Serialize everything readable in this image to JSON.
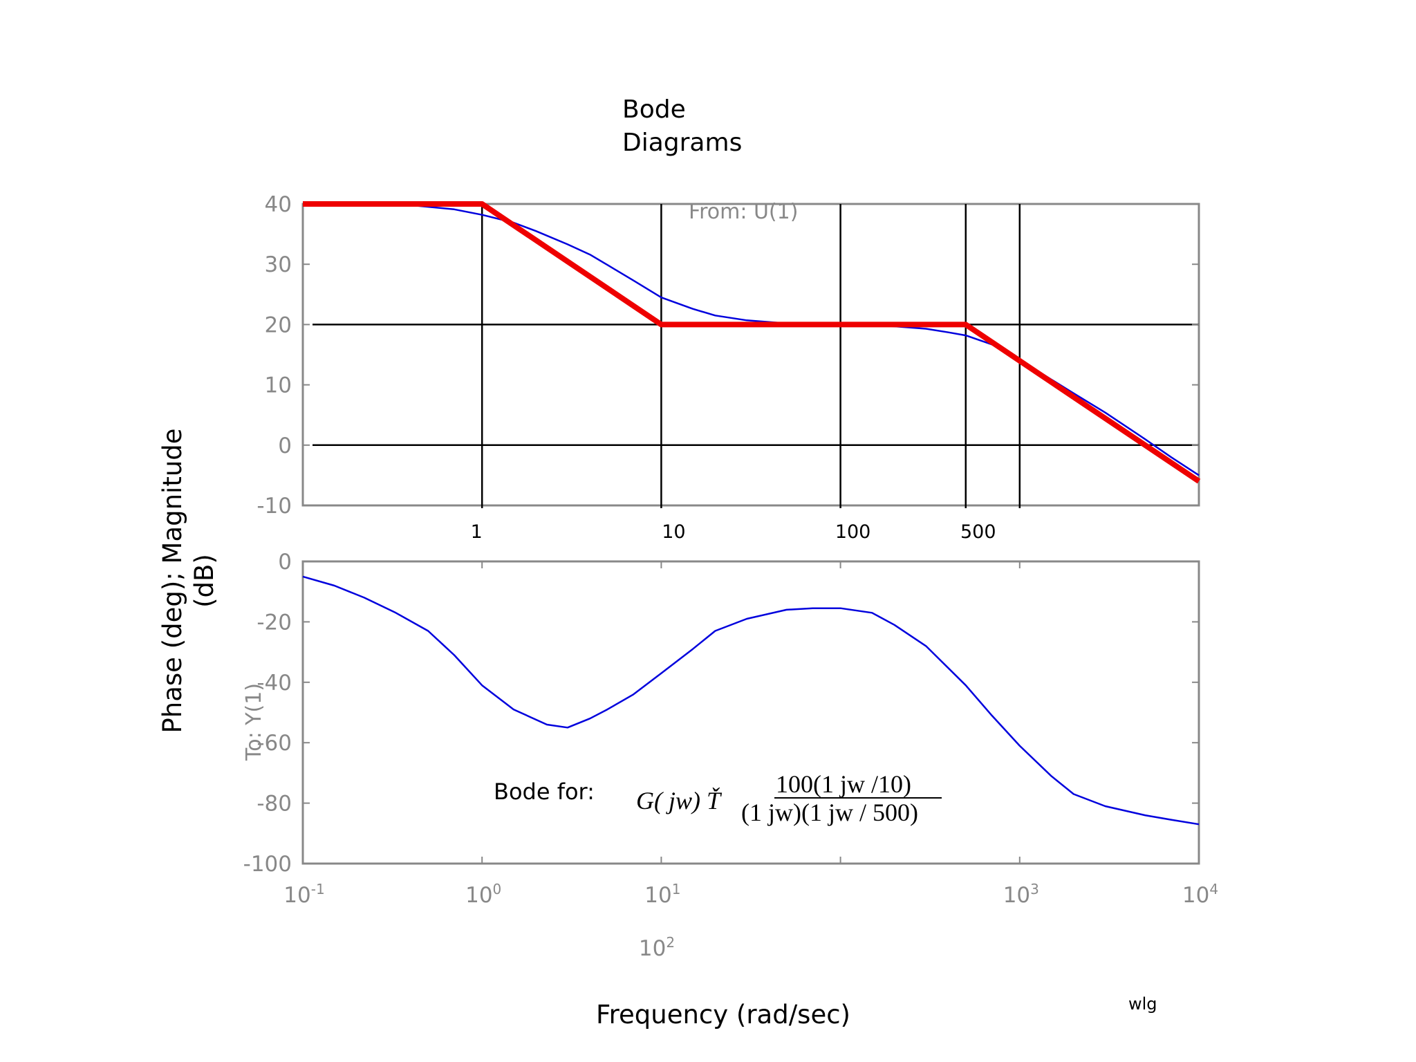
{
  "title_lines": [
    "Bode",
    "Diagrams"
  ],
  "from_label": "From: U(1)",
  "to_label": "To: Y(1)",
  "ylabel_lines": [
    "Phase (deg); Magnitude",
    "(dB)"
  ],
  "xlabel": "Frequency (rad/sec)",
  "author": "wlg",
  "annotation": {
    "prefix": "Bode for:",
    "lhs": "G( jw) Ť",
    "numerator": "100(1   jw /10)",
    "denominator": "(1   jw)(1   jw / 500)",
    "dots": [
      "̣",
      "̣"
    ]
  },
  "colors": {
    "bode": "#0000dd",
    "asymptote": "#ee0000",
    "frame": "#888888",
    "grid": "#000000"
  },
  "chart_data": [
    {
      "type": "line",
      "name": "magnitude",
      "xscale": "log",
      "xlim": [
        0.1,
        10000
      ],
      "ylim": [
        -10,
        40
      ],
      "ytick_labels": [
        "40",
        "30",
        "20",
        "10",
        "0",
        "-10"
      ],
      "ytick_values": [
        40,
        30,
        20,
        10,
        0,
        -10
      ],
      "marked_frequencies": [
        {
          "label": "1",
          "value": 1
        },
        {
          "label": "10",
          "value": 10
        },
        {
          "label": "100",
          "value": 100
        },
        {
          "label": "500",
          "value": 500
        }
      ],
      "vertical_lines": [
        1,
        10,
        100,
        500,
        1000
      ],
      "horizontal_lines": [
        20,
        0
      ],
      "series": [
        {
          "style": "actual",
          "x": [
            0.1,
            0.2,
            0.4,
            0.7,
            1,
            1.5,
            2,
            3,
            4,
            5,
            7,
            10,
            15,
            20,
            30,
            50,
            70,
            100,
            150,
            200,
            300,
            400,
            500,
            700,
            1000,
            1500,
            2000,
            3000,
            5000,
            7000,
            10000
          ],
          "values": [
            40,
            39.9,
            39.8,
            39.1,
            38.2,
            36.9,
            35.5,
            33.3,
            31.6,
            29.9,
            27.3,
            24.5,
            22.6,
            21.5,
            20.7,
            20.2,
            20.1,
            20.0,
            19.9,
            19.7,
            19.3,
            18.7,
            18.2,
            16.7,
            14.2,
            10.9,
            8.6,
            5.4,
            1.0,
            -2.0,
            -5.0
          ]
        },
        {
          "style": "asymptote",
          "x": [
            0.1,
            1,
            10,
            500,
            10000
          ],
          "values": [
            40,
            40,
            20,
            20,
            -6
          ]
        }
      ]
    },
    {
      "type": "line",
      "name": "phase",
      "xscale": "log",
      "xlim": [
        0.1,
        10000
      ],
      "ylim": [
        -100,
        0
      ],
      "ytick_labels": [
        "0",
        "-20",
        "-40",
        "-60",
        "-80",
        "-100"
      ],
      "ytick_values": [
        0,
        -20,
        -40,
        -60,
        -80,
        -100
      ],
      "xtick_values": [
        0.1,
        1,
        10,
        1000,
        10000
      ],
      "xtick_labels": [
        {
          "base": "10",
          "exp": "-1"
        },
        {
          "base": "10",
          "exp": "0"
        },
        {
          "base": "10",
          "exp": "1"
        },
        {
          "base": "10",
          "exp": "3"
        },
        {
          "base": "10",
          "exp": "4"
        }
      ],
      "extra_tick_label": {
        "base": "10",
        "exp": "2"
      },
      "series": [
        {
          "style": "actual",
          "x": [
            0.1,
            0.15,
            0.22,
            0.33,
            0.5,
            0.7,
            1,
            1.5,
            2.3,
            3,
            4,
            5,
            7,
            10,
            15,
            20,
            30,
            50,
            70,
            100,
            150,
            200,
            300,
            500,
            700,
            1000,
            1500,
            2000,
            3000,
            5000,
            7000,
            10000
          ],
          "values": [
            -5,
            -8,
            -12,
            -17,
            -23,
            -31,
            -41,
            -49,
            -54,
            -55,
            -52,
            -49,
            -44,
            -37,
            -29,
            -23,
            -19,
            -16,
            -15.5,
            -15.5,
            -17,
            -21,
            -28,
            -41,
            -51,
            -61,
            -71,
            -77,
            -81,
            -84,
            -85.5,
            -87
          ]
        }
      ]
    }
  ]
}
